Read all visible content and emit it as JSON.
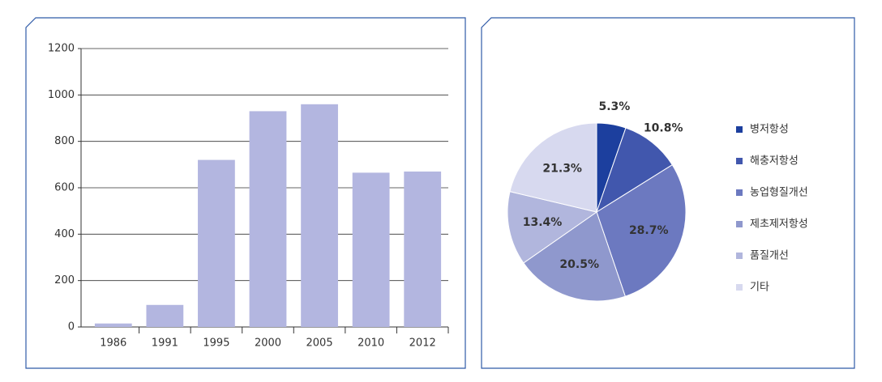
{
  "chart_data": [
    {
      "type": "bar",
      "categories": [
        "1986",
        "1991",
        "1995",
        "2000",
        "2005",
        "2010",
        "2012"
      ],
      "values": [
        15,
        95,
        720,
        930,
        960,
        665,
        670
      ],
      "color": "#b3b6e0",
      "ylim": [
        0,
        1200
      ],
      "yticks": [
        0,
        200,
        400,
        600,
        800,
        1000,
        1200
      ],
      "grid": true
    },
    {
      "type": "pie",
      "categories": [
        "병저항성",
        "해충저항성",
        "농업형질개선",
        "제초제저항성",
        "품질개선",
        "기타"
      ],
      "values": [
        5.3,
        10.8,
        28.7,
        20.5,
        13.4,
        21.3
      ],
      "value_labels": [
        "5.3%",
        "10.8%",
        "28.7%",
        "20.5%",
        "13.4%",
        "21.3%"
      ],
      "colors": [
        "#1c3f9e",
        "#4157ad",
        "#6c79c0",
        "#8f98cd",
        "#b1b6dd",
        "#d7d9ef"
      ],
      "legend": "right"
    }
  ]
}
